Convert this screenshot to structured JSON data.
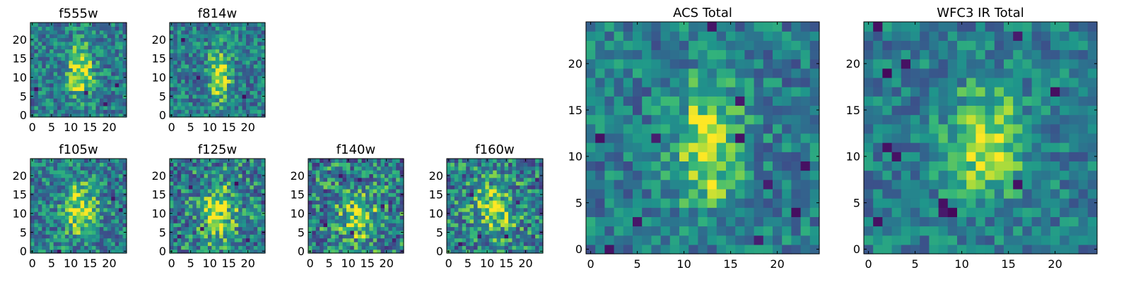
{
  "chart_data": [
    {
      "type": "heatmap",
      "title": "f555w",
      "xlabel": "",
      "ylabel": "",
      "xlim": [
        -0.5,
        24.5
      ],
      "ylim": [
        -0.5,
        24.5
      ],
      "xticks": [
        "0",
        "5",
        "10",
        "15",
        "20"
      ],
      "yticks": [
        "0",
        "5",
        "10",
        "15",
        "20"
      ],
      "grid": false,
      "colormap": "viridis",
      "grid_size": [
        25,
        25
      ],
      "feature": {
        "center": [
          12.5,
          11.5
        ],
        "sigma": [
          2.2,
          5.0
        ],
        "peak": 0.85
      },
      "noise": 0.25,
      "dark_pixels": [
        [
          1,
          7
        ],
        [
          22,
          8
        ],
        [
          14,
          6
        ],
        [
          19,
          3
        ]
      ]
    },
    {
      "type": "heatmap",
      "title": "f814w",
      "xlabel": "",
      "ylabel": "",
      "xlim": [
        -0.5,
        24.5
      ],
      "ylim": [
        -0.5,
        24.5
      ],
      "xticks": [
        "0",
        "5",
        "10",
        "15",
        "20"
      ],
      "yticks": [
        "0",
        "5",
        "10",
        "15",
        "20"
      ],
      "grid": false,
      "colormap": "viridis",
      "grid_size": [
        25,
        25
      ],
      "feature": {
        "center": [
          12.5,
          10.5
        ],
        "sigma": [
          2.0,
          4.5
        ],
        "peak": 0.85
      },
      "noise": 0.25,
      "dark_pixels": [
        [
          7,
          10
        ],
        [
          19,
          5
        ],
        [
          3,
          20
        ]
      ]
    },
    {
      "type": "heatmap",
      "title": "f105w",
      "xlabel": "",
      "ylabel": "",
      "xlim": [
        -0.5,
        24.5
      ],
      "ylim": [
        -0.5,
        24.5
      ],
      "xticks": [
        "0",
        "5",
        "10",
        "15",
        "20"
      ],
      "yticks": [
        "0",
        "5",
        "10",
        "15",
        "20"
      ],
      "grid": false,
      "colormap": "viridis",
      "grid_size": [
        25,
        25
      ],
      "feature": {
        "center": [
          12.5,
          11.0
        ],
        "sigma": [
          3.0,
          5.0
        ],
        "peak": 0.75
      },
      "noise": 0.28,
      "dark_pixels": [
        [
          23,
          11
        ],
        [
          7,
          0
        ],
        [
          21,
          14
        ]
      ]
    },
    {
      "type": "heatmap",
      "title": "f125w",
      "xlabel": "",
      "ylabel": "",
      "xlim": [
        -0.5,
        24.5
      ],
      "ylim": [
        -0.5,
        24.5
      ],
      "xticks": [
        "0",
        "5",
        "10",
        "15",
        "20"
      ],
      "yticks": [
        "0",
        "5",
        "10",
        "15",
        "20"
      ],
      "grid": false,
      "colormap": "viridis",
      "grid_size": [
        25,
        25
      ],
      "feature": {
        "center": [
          12.5,
          10.0
        ],
        "sigma": [
          3.5,
          5.5
        ],
        "peak": 0.7
      },
      "noise": 0.32,
      "dark_pixels": [
        [
          5,
          17
        ],
        [
          17,
          18
        ],
        [
          20,
          3
        ],
        [
          8,
          6
        ],
        [
          2,
          4
        ]
      ]
    },
    {
      "type": "heatmap",
      "title": "f140w",
      "xlabel": "",
      "ylabel": "",
      "xlim": [
        -0.5,
        24.5
      ],
      "ylim": [
        -0.5,
        24.5
      ],
      "xticks": [
        "0",
        "5",
        "10",
        "15",
        "20"
      ],
      "yticks": [
        "0",
        "5",
        "10",
        "15",
        "20"
      ],
      "grid": false,
      "colormap": "viridis",
      "grid_size": [
        25,
        25
      ],
      "feature": {
        "center": [
          12.5,
          9.0
        ],
        "sigma": [
          3.5,
          5.0
        ],
        "peak": 0.6
      },
      "noise": 0.35,
      "dark_pixels": [
        [
          13,
          19
        ],
        [
          11,
          5
        ],
        [
          19,
          12
        ],
        [
          4,
          7
        ],
        [
          22,
          3
        ],
        [
          8,
          20
        ]
      ]
    },
    {
      "type": "heatmap",
      "title": "f160w",
      "xlabel": "",
      "ylabel": "",
      "xlim": [
        -0.5,
        24.5
      ],
      "ylim": [
        -0.5,
        24.5
      ],
      "xticks": [
        "0",
        "5",
        "10",
        "15",
        "20"
      ],
      "yticks": [
        "0",
        "5",
        "10",
        "15",
        "20"
      ],
      "grid": false,
      "colormap": "viridis",
      "grid_size": [
        25,
        25
      ],
      "feature": {
        "center": [
          12.0,
          11.0
        ],
        "sigma": [
          4.0,
          5.0
        ],
        "peak": 0.6
      },
      "noise": 0.32,
      "dark_pixels": [
        [
          8,
          4
        ],
        [
          15,
          4
        ],
        [
          23,
          19
        ],
        [
          6,
          15
        ],
        [
          18,
          13
        ],
        [
          3,
          2
        ]
      ]
    },
    {
      "type": "heatmap",
      "title": "ACS Total",
      "xlabel": "",
      "ylabel": "",
      "xlim": [
        -0.5,
        24.5
      ],
      "ylim": [
        -0.5,
        24.5
      ],
      "xticks": [
        "0",
        "5",
        "10",
        "15",
        "20"
      ],
      "yticks": [
        "0",
        "5",
        "10",
        "15",
        "20"
      ],
      "grid": false,
      "colormap": "viridis",
      "grid_size": [
        25,
        25
      ],
      "feature": {
        "center": [
          12.5,
          11.0
        ],
        "sigma": [
          2.5,
          4.5
        ],
        "peak": 0.85
      },
      "noise": 0.22,
      "dark_pixels": [
        [
          1,
          12
        ],
        [
          7,
          12
        ],
        [
          16,
          12
        ],
        [
          16,
          16
        ],
        [
          13,
          24
        ],
        [
          19,
          7
        ],
        [
          23,
          9
        ],
        [
          2,
          0
        ],
        [
          5,
          3
        ],
        [
          22,
          4
        ],
        [
          18,
          1
        ]
      ]
    },
    {
      "type": "heatmap",
      "title": "WFC3 IR Total",
      "xlabel": "",
      "ylabel": "",
      "xlim": [
        -0.5,
        24.5
      ],
      "ylim": [
        -0.5,
        24.5
      ],
      "xticks": [
        "0",
        "5",
        "10",
        "15",
        "20"
      ],
      "yticks": [
        "0",
        "5",
        "10",
        "15",
        "20"
      ],
      "grid": false,
      "colormap": "viridis",
      "grid_size": [
        25,
        25
      ],
      "feature": {
        "center": [
          12.5,
          11.5
        ],
        "sigma": [
          3.0,
          4.0
        ],
        "peak": 0.8
      },
      "noise": 0.2,
      "dark_pixels": [
        [
          1,
          24
        ],
        [
          2,
          19
        ],
        [
          3,
          10
        ],
        [
          2,
          11
        ],
        [
          8,
          4
        ],
        [
          9,
          4
        ],
        [
          8,
          5
        ],
        [
          16,
          7
        ],
        [
          1,
          3
        ],
        [
          20,
          17
        ],
        [
          4,
          20
        ],
        [
          16,
          23
        ]
      ]
    }
  ]
}
